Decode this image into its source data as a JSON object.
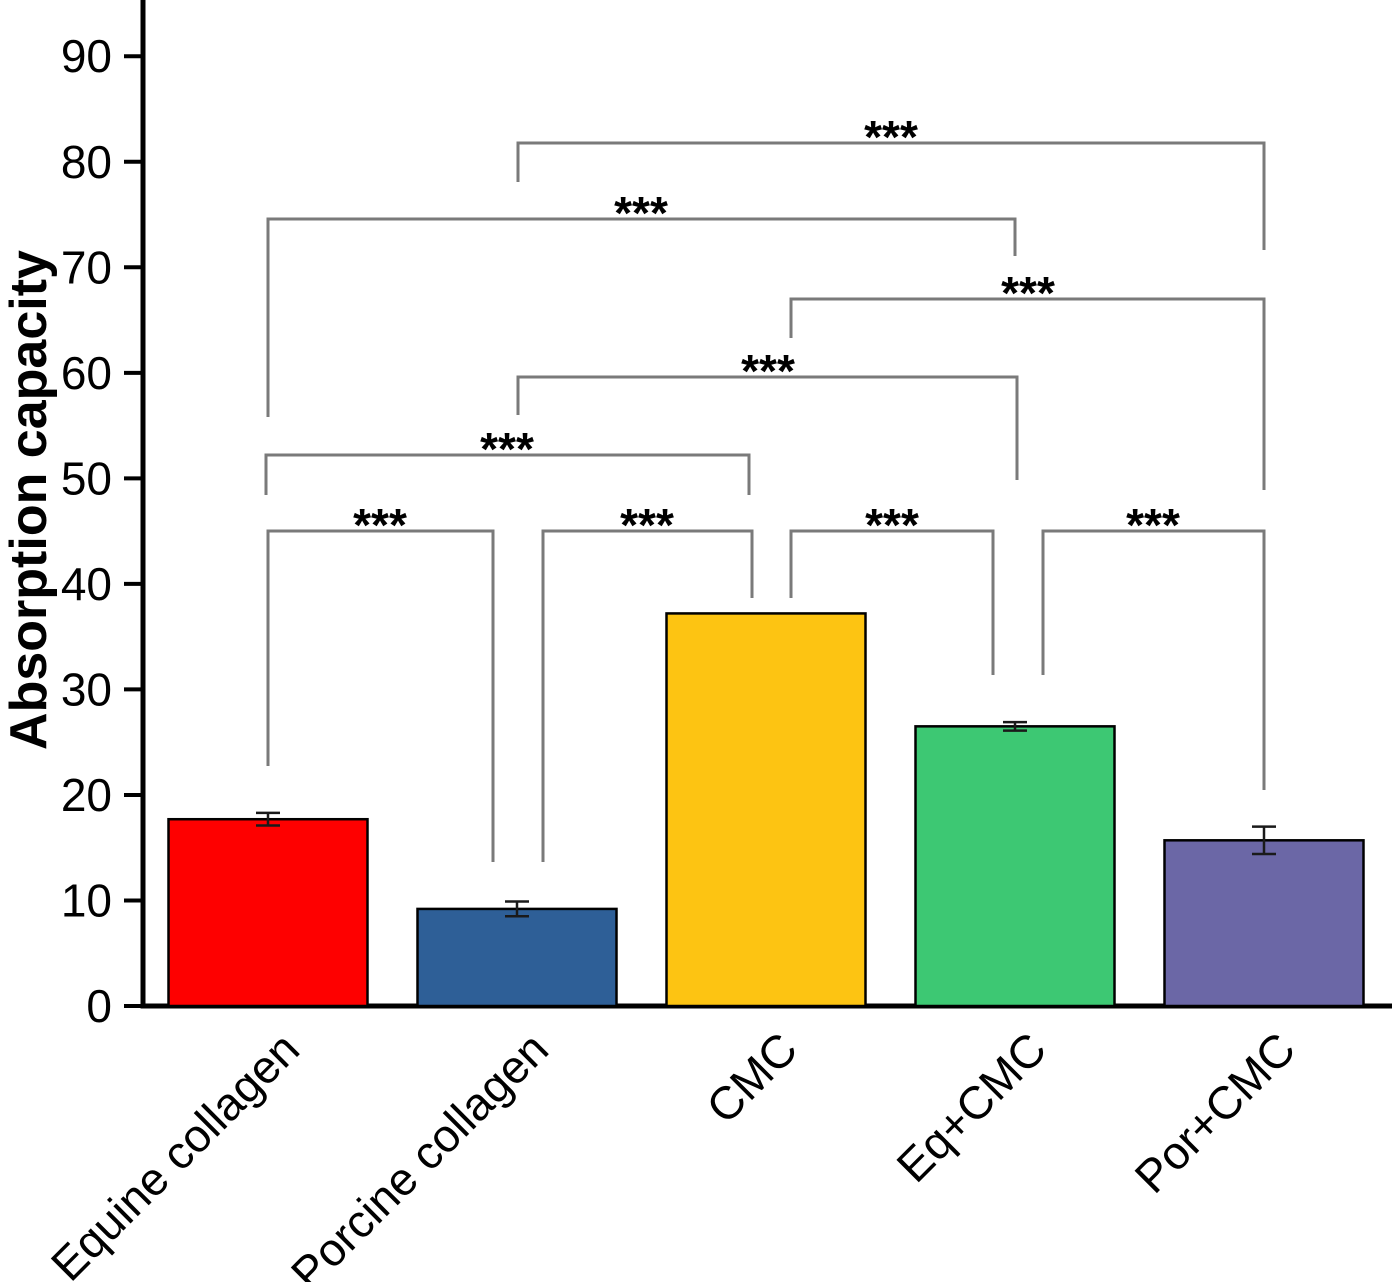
{
  "chart_data": {
    "type": "bar",
    "title": "",
    "ylabel": "Absorption capacity",
    "xlabel": "",
    "categories": [
      "Equine collagen",
      "Porcine collagen",
      "CMC",
      "Eq+CMC",
      "Por+CMC"
    ],
    "values": [
      17.7,
      9.2,
      37.2,
      26.5,
      15.7
    ],
    "errors": [
      0.6,
      0.7,
      0,
      0.4,
      1.3
    ],
    "bar_colors": [
      "#fe0000",
      "#2e5f97",
      "#fdc412",
      "#3dc873",
      "#6b67a6"
    ],
    "bar_edge_color": "#000000",
    "bracket_color": "#7a7a7a",
    "ylim": [
      0,
      95
    ],
    "yticks": [
      0,
      10,
      20,
      30,
      40,
      50,
      60,
      70,
      80,
      90
    ],
    "grid": "off",
    "legend": "none",
    "significance_brackets": [
      {
        "between": [
          "Porcine collagen",
          "Por+CMC"
        ],
        "label": "***"
      },
      {
        "between": [
          "Equine collagen",
          "Eq+CMC"
        ],
        "label": "***"
      },
      {
        "between": [
          "CMC",
          "Por+CMC"
        ],
        "label": "***"
      },
      {
        "between": [
          "Porcine collagen",
          "Eq+CMC"
        ],
        "label": "***"
      },
      {
        "between": [
          "Equine collagen",
          "CMC"
        ],
        "label": "***"
      },
      {
        "between": [
          "Equine collagen",
          "Porcine collagen"
        ],
        "label": "***"
      },
      {
        "between": [
          "Porcine collagen",
          "CMC"
        ],
        "label": "***"
      },
      {
        "between": [
          "CMC",
          "Eq+CMC"
        ],
        "label": "***"
      },
      {
        "between": [
          "Eq+CMC",
          "Por+CMC"
        ],
        "label": "***"
      }
    ]
  }
}
